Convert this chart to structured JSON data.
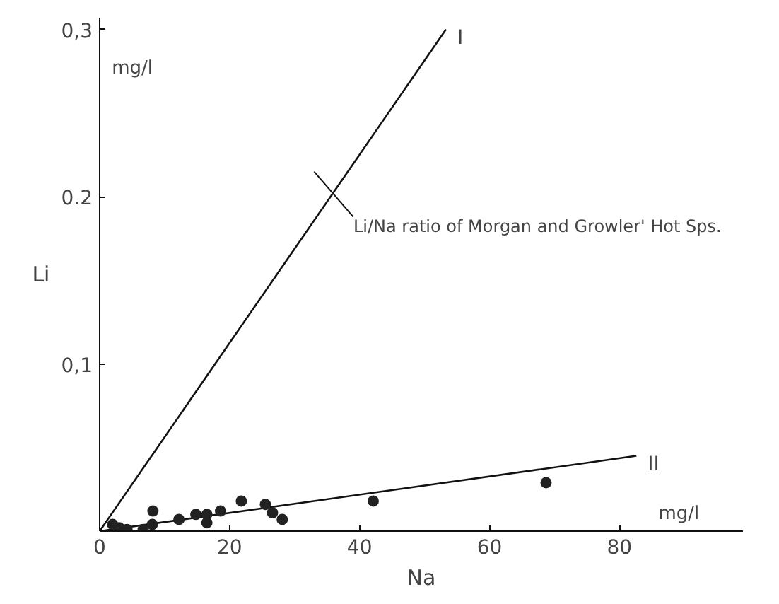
{
  "chart_data": {
    "type": "scatter",
    "xlabel": "Na",
    "ylabel": "Li",
    "xlim": [
      0,
      99
    ],
    "ylim": [
      0,
      0.307
    ],
    "xticks": [
      {
        "value": 0,
        "label": "0"
      },
      20,
      40,
      60,
      80
    ],
    "yticks": [
      {
        "value": 0,
        "label": null
      },
      {
        "value": 0.1,
        "label": "0,1"
      },
      {
        "value": 0.2,
        "label": "0.2"
      },
      {
        "value": 0.3,
        "label": "0,3"
      }
    ],
    "grid": false,
    "series": [
      {
        "type": "line",
        "color": "#111111",
        "x": [
          0,
          53.3
        ],
        "values": [
          0,
          0.3
        ]
      },
      {
        "type": "line",
        "color": "#111111",
        "x": [
          0,
          82.6
        ],
        "values": [
          0,
          0.045
        ]
      },
      {
        "color": "#222222",
        "x": [
          2.0,
          3.0,
          4.2,
          6.7,
          8.2,
          8.1,
          12.2,
          14.8,
          16.5,
          16.5,
          18.6,
          21.8,
          25.5,
          26.6,
          28.1,
          42.1,
          68.7
        ],
        "values": [
          0.004,
          0.002,
          0.001,
          0.001,
          0.012,
          0.004,
          0.007,
          0.01,
          0.01,
          0.005,
          0.012,
          0.018,
          0.016,
          0.011,
          0.007,
          0.018,
          0.029
        ]
      }
    ],
    "annotations": [
      {
        "text": "I",
        "x": 53.3,
        "y": 0.3
      },
      {
        "text": "II",
        "x": 82.6,
        "y": 0.045
      },
      {
        "text": "Li/Na ratio of Morgan and Growler' Hot Sps.",
        "x": 36,
        "y": 0.2
      },
      "mg/l",
      "mg/l"
    ]
  }
}
